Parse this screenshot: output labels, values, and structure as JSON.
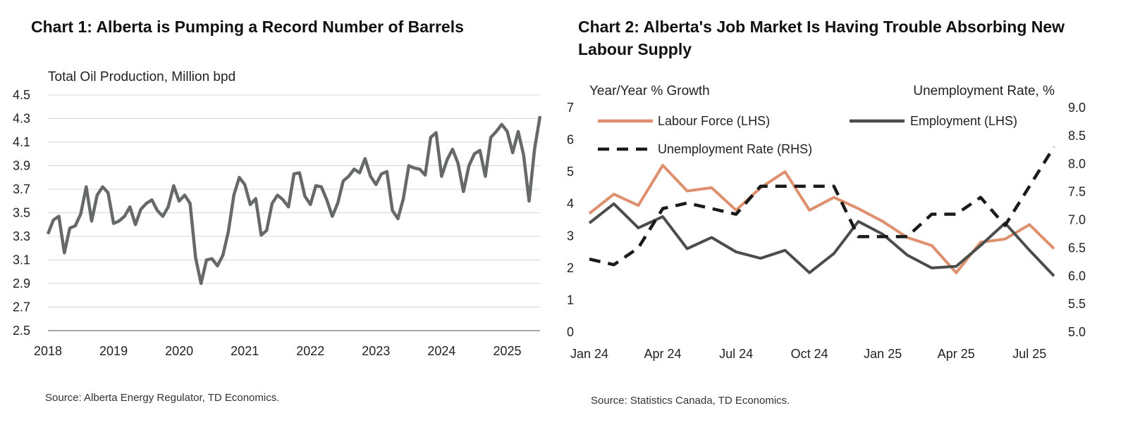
{
  "chart_data": [
    {
      "type": "line",
      "title": "Chart 1: Alberta is Pumping a Record Number of Barrels",
      "ylabel": "Total Oil Production, Million bpd",
      "xlabel": "",
      "ylim": [
        2.5,
        4.5
      ],
      "yticks": [
        "4.5",
        "4.3",
        "4.1",
        "3.9",
        "3.7",
        "3.5",
        "3.3",
        "3.1",
        "2.9",
        "2.7",
        "2.5"
      ],
      "xticks": [
        "2018",
        "2019",
        "2020",
        "2021",
        "2022",
        "2023",
        "2024",
        "2025"
      ],
      "x_start": 2018.0,
      "x_step_months": 1,
      "series": [
        {
          "name": "Total Oil Production",
          "color": "#666a66",
          "values": [
            3.32,
            3.44,
            3.47,
            3.16,
            3.37,
            3.39,
            3.49,
            3.72,
            3.43,
            3.65,
            3.72,
            3.67,
            3.41,
            3.43,
            3.47,
            3.55,
            3.4,
            3.53,
            3.58,
            3.61,
            3.52,
            3.47,
            3.55,
            3.73,
            3.6,
            3.65,
            3.58,
            3.12,
            2.9,
            3.1,
            3.11,
            3.05,
            3.14,
            3.34,
            3.65,
            3.8,
            3.74,
            3.57,
            3.62,
            3.31,
            3.35,
            3.58,
            3.65,
            3.61,
            3.55,
            3.83,
            3.84,
            3.64,
            3.57,
            3.73,
            3.72,
            3.61,
            3.47,
            3.58,
            3.77,
            3.81,
            3.87,
            3.84,
            3.96,
            3.81,
            3.74,
            3.83,
            3.85,
            3.52,
            3.45,
            3.62,
            3.9,
            3.88,
            3.87,
            3.82,
            4.14,
            4.18,
            3.81,
            3.95,
            4.04,
            3.92,
            3.68,
            3.9,
            4.0,
            4.03,
            3.81,
            4.14,
            4.19,
            4.25,
            4.19,
            4.01,
            4.19,
            3.99,
            3.6,
            4.04,
            4.32
          ]
        }
      ],
      "source": "Source: Alberta Energy Regulator, TD Economics."
    },
    {
      "type": "line",
      "title": "Chart 2: Alberta's Job Market Is Having Trouble Absorbing New Labour Supply",
      "ylabel_left": "Year/Year % Growth",
      "ylabel_right": "Unemployment Rate, %",
      "ylim_left": [
        0,
        7
      ],
      "ylim_right": [
        5.0,
        9.0
      ],
      "yticks_left": [
        "7",
        "6",
        "5",
        "4",
        "3",
        "2",
        "1",
        "0"
      ],
      "yticks_right": [
        "9.0",
        "8.5",
        "8.0",
        "7.5",
        "7.0",
        "6.5",
        "6.0",
        "5.5",
        "5.0"
      ],
      "categories": [
        "Jan 24",
        "Feb 24",
        "Mar 24",
        "Apr 24",
        "May 24",
        "Jun 24",
        "Jul 24",
        "Aug 24",
        "Sep 24",
        "Oct 24",
        "Nov 24",
        "Dec 24",
        "Jan 25",
        "Feb 25",
        "Mar 25",
        "Apr 25",
        "May 25",
        "Jun 25",
        "Jul 25",
        "Aug 25"
      ],
      "xticks": [
        "Jan 24",
        "Apr 24",
        "Jul 24",
        "Oct 24",
        "Jan 25",
        "Apr 25",
        "Jul 25"
      ],
      "series": [
        {
          "name": "Labour Force (LHS)",
          "axis": "left",
          "color": "#de8f6e",
          "style": "solid",
          "values": [
            3.7,
            4.3,
            3.95,
            5.2,
            4.4,
            4.5,
            3.8,
            4.5,
            5.0,
            3.8,
            4.2,
            3.85,
            3.45,
            2.95,
            2.7,
            1.85,
            2.8,
            2.9,
            3.35,
            2.6
          ]
        },
        {
          "name": "Employment (LHS)",
          "axis": "left",
          "color": "#4a4e4b",
          "style": "solid",
          "values": [
            3.4,
            4.0,
            3.25,
            3.6,
            2.6,
            2.95,
            2.5,
            2.3,
            2.55,
            1.85,
            2.45,
            3.45,
            3.05,
            2.4,
            2.0,
            2.05,
            2.7,
            3.4,
            2.55,
            1.75
          ]
        },
        {
          "name": "Unemployment Rate (RHS)",
          "axis": "right",
          "color": "#1a1a1a",
          "style": "dashed",
          "values": [
            6.3,
            6.2,
            6.5,
            7.2,
            7.3,
            7.2,
            7.1,
            7.6,
            7.6,
            7.6,
            7.6,
            6.7,
            6.7,
            6.7,
            7.1,
            7.1,
            7.4,
            6.9,
            7.6,
            8.3
          ]
        }
      ],
      "source": "Source: Statistics Canada, TD Economics."
    }
  ]
}
